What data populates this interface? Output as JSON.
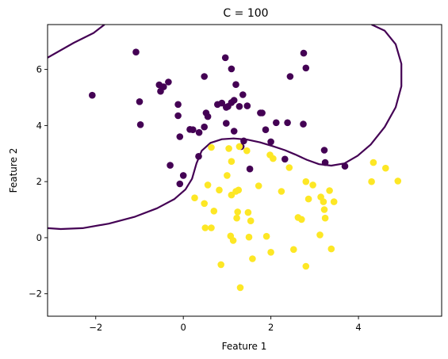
{
  "chart_data": {
    "type": "scatter",
    "title": "C = 100",
    "xlabel": "Feature 1",
    "ylabel": "Feature 2",
    "xlim": [
      -3.1,
      5.9
    ],
    "ylim": [
      -2.8,
      7.6
    ],
    "xticks": [
      -2,
      0,
      2,
      4
    ],
    "yticks": [
      -2,
      0,
      2,
      4,
      6
    ],
    "xtick_labels": [
      "−2",
      "0",
      "2",
      "4"
    ],
    "ytick_labels": [
      "−2",
      "0",
      "2",
      "4",
      "6"
    ],
    "grid": false,
    "legend": "none",
    "series": [
      {
        "class": 0,
        "color": "#440154",
        "points": [
          [
            -1.08,
            6.62
          ],
          [
            -2.08,
            5.08
          ],
          [
            -1.0,
            4.85
          ],
          [
            -0.98,
            4.03
          ],
          [
            -0.55,
            5.45
          ],
          [
            -0.45,
            5.38
          ],
          [
            -0.52,
            5.22
          ],
          [
            -0.34,
            5.55
          ],
          [
            -0.12,
            4.75
          ],
          [
            -0.12,
            4.35
          ],
          [
            -0.08,
            3.6
          ],
          [
            0.15,
            3.86
          ],
          [
            0.22,
            3.85
          ],
          [
            0.36,
            3.75
          ],
          [
            0.48,
            3.95
          ],
          [
            0.52,
            4.45
          ],
          [
            0.56,
            4.32
          ],
          [
            0.48,
            5.75
          ],
          [
            0.0,
            2.22
          ],
          [
            -0.08,
            1.92
          ],
          [
            -0.3,
            2.58
          ],
          [
            0.35,
            2.9
          ],
          [
            0.78,
            4.75
          ],
          [
            0.88,
            4.8
          ],
          [
            0.98,
            4.65
          ],
          [
            1.02,
            4.68
          ],
          [
            1.1,
            4.82
          ],
          [
            1.16,
            4.9
          ],
          [
            0.98,
            4.08
          ],
          [
            1.16,
            3.8
          ],
          [
            0.96,
            6.42
          ],
          [
            1.1,
            6.02
          ],
          [
            1.2,
            5.46
          ],
          [
            1.28,
            4.68
          ],
          [
            1.36,
            5.1
          ],
          [
            1.46,
            4.7
          ],
          [
            1.38,
            3.45
          ],
          [
            1.32,
            3.25
          ],
          [
            1.52,
            2.45
          ],
          [
            1.76,
            4.45
          ],
          [
            1.8,
            4.45
          ],
          [
            1.88,
            3.85
          ],
          [
            2.0,
            3.42
          ],
          [
            2.12,
            4.1
          ],
          [
            2.38,
            4.1
          ],
          [
            2.44,
            5.75
          ],
          [
            2.75,
            6.58
          ],
          [
            2.8,
            6.05
          ],
          [
            2.74,
            4.05
          ],
          [
            2.32,
            2.8
          ],
          [
            3.22,
            3.12
          ],
          [
            3.24,
            2.68
          ],
          [
            3.69,
            2.55
          ]
        ]
      },
      {
        "class": 1,
        "color": "#fde725",
        "points": [
          [
            0.64,
            3.22
          ],
          [
            1.04,
            3.18
          ],
          [
            1.28,
            3.25
          ],
          [
            1.45,
            3.1
          ],
          [
            1.1,
            2.72
          ],
          [
            1.0,
            2.22
          ],
          [
            1.98,
            2.95
          ],
          [
            2.42,
            2.5
          ],
          [
            2.05,
            2.82
          ],
          [
            0.56,
            1.88
          ],
          [
            0.82,
            1.7
          ],
          [
            1.1,
            1.52
          ],
          [
            1.2,
            1.65
          ],
          [
            1.26,
            1.7
          ],
          [
            1.72,
            1.85
          ],
          [
            0.26,
            1.42
          ],
          [
            0.48,
            1.22
          ],
          [
            0.7,
            0.95
          ],
          [
            0.5,
            0.35
          ],
          [
            0.64,
            0.35
          ],
          [
            1.24,
            0.92
          ],
          [
            1.22,
            0.7
          ],
          [
            1.48,
            0.9
          ],
          [
            1.54,
            0.6
          ],
          [
            1.08,
            0.06
          ],
          [
            1.14,
            -0.1
          ],
          [
            1.5,
            0.02
          ],
          [
            1.9,
            0.05
          ],
          [
            1.58,
            -0.75
          ],
          [
            2.0,
            -0.52
          ],
          [
            2.52,
            -0.42
          ],
          [
            2.8,
            -1.02
          ],
          [
            0.86,
            -0.96
          ],
          [
            1.3,
            -1.78
          ],
          [
            2.24,
            1.65
          ],
          [
            2.62,
            0.72
          ],
          [
            2.7,
            0.65
          ],
          [
            2.8,
            2.0
          ],
          [
            2.86,
            1.38
          ],
          [
            2.96,
            1.88
          ],
          [
            3.14,
            1.45
          ],
          [
            3.2,
            1.28
          ],
          [
            3.22,
            1.0
          ],
          [
            3.24,
            0.7
          ],
          [
            3.12,
            0.1
          ],
          [
            3.38,
            -0.4
          ],
          [
            3.34,
            1.68
          ],
          [
            3.44,
            1.28
          ],
          [
            4.3,
            2.0
          ],
          [
            4.34,
            2.68
          ],
          [
            4.62,
            2.48
          ],
          [
            4.9,
            2.02
          ]
        ]
      }
    ],
    "decision_boundary": {
      "color": "#440154",
      "segments": [
        [
          [
            -3.1,
            6.42
          ],
          [
            -2.5,
            6.95
          ],
          [
            -2.05,
            7.3
          ],
          [
            -1.8,
            7.6
          ]
        ],
        [
          [
            4.3,
            7.6
          ],
          [
            4.6,
            7.38
          ],
          [
            4.85,
            6.9
          ],
          [
            4.98,
            6.2
          ],
          [
            4.98,
            5.4
          ],
          [
            4.85,
            4.65
          ],
          [
            4.6,
            3.95
          ],
          [
            4.28,
            3.32
          ],
          [
            3.98,
            2.92
          ],
          [
            3.68,
            2.65
          ],
          [
            3.38,
            2.57
          ],
          [
            3.1,
            2.62
          ],
          [
            2.82,
            2.78
          ],
          [
            2.55,
            2.97
          ],
          [
            2.32,
            3.12
          ],
          [
            2.05,
            3.26
          ],
          [
            1.75,
            3.4
          ],
          [
            1.45,
            3.5
          ],
          [
            1.15,
            3.54
          ],
          [
            0.88,
            3.51
          ],
          [
            0.62,
            3.38
          ],
          [
            0.42,
            3.1
          ],
          [
            0.3,
            2.65
          ],
          [
            0.2,
            2.1
          ],
          [
            0.05,
            1.72
          ],
          [
            -0.2,
            1.38
          ],
          [
            -0.6,
            1.05
          ],
          [
            -1.1,
            0.75
          ],
          [
            -1.7,
            0.5
          ],
          [
            -2.3,
            0.34
          ],
          [
            -2.8,
            0.31
          ],
          [
            -3.1,
            0.34
          ]
        ]
      ]
    }
  }
}
